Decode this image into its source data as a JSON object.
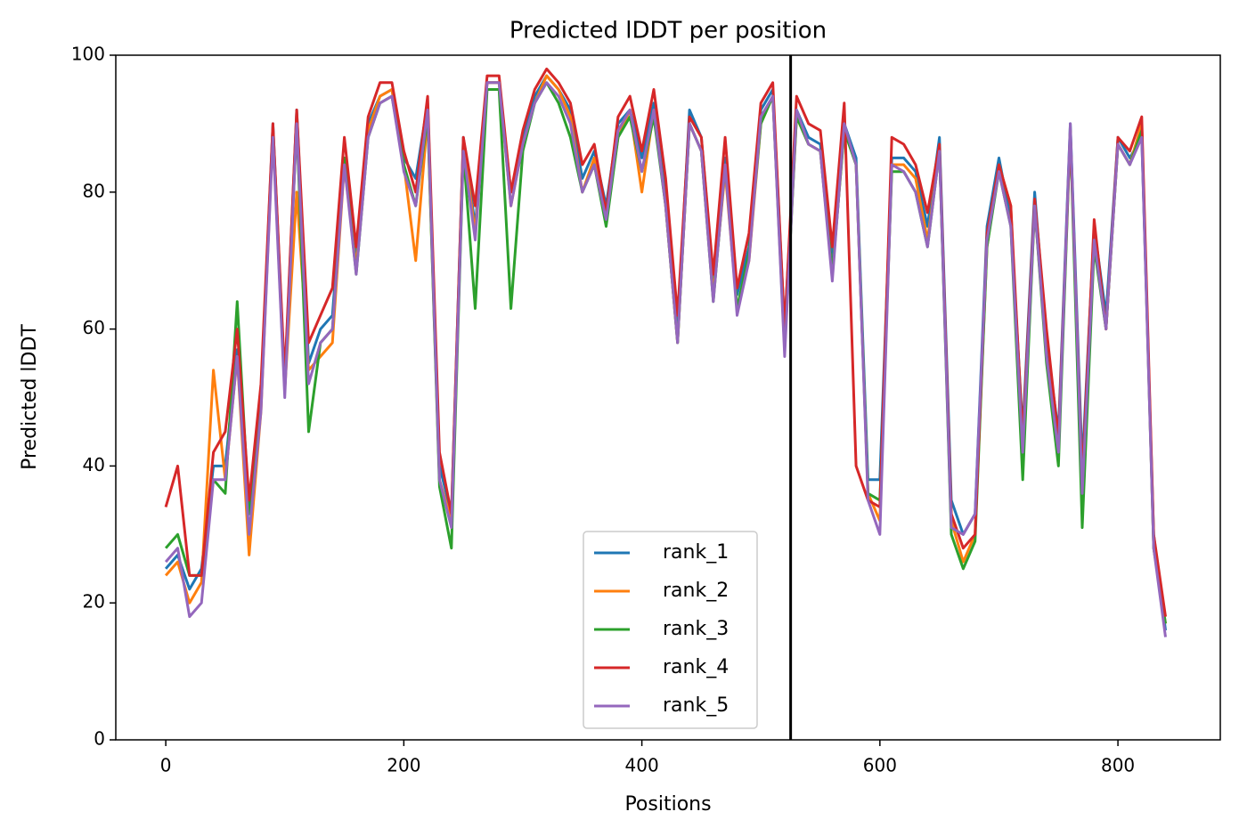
{
  "chart_data": {
    "type": "line",
    "title": "Predicted lDDT per position",
    "xlabel": "Positions",
    "ylabel": "Predicted lDDT",
    "xlim": [
      -42,
      886
    ],
    "ylim": [
      0,
      100
    ],
    "xticks": [
      0,
      200,
      400,
      600,
      800
    ],
    "yticks": [
      0,
      20,
      40,
      60,
      80,
      100
    ],
    "vlines": [
      525
    ],
    "legend": "lower center",
    "x": [
      0,
      10,
      20,
      30,
      40,
      50,
      60,
      70,
      80,
      90,
      100,
      110,
      120,
      130,
      140,
      150,
      160,
      170,
      180,
      190,
      200,
      210,
      220,
      230,
      240,
      250,
      260,
      270,
      280,
      290,
      300,
      310,
      320,
      330,
      340,
      350,
      360,
      370,
      380,
      390,
      400,
      410,
      420,
      430,
      440,
      450,
      460,
      470,
      480,
      490,
      500,
      510,
      520,
      530,
      540,
      550,
      560,
      570,
      580,
      590,
      600,
      610,
      620,
      630,
      640,
      650,
      660,
      670,
      680,
      690,
      700,
      710,
      720,
      730,
      740,
      750,
      760,
      770,
      780,
      790,
      800,
      810,
      820,
      830,
      840
    ],
    "series": [
      {
        "name": "rank_1",
        "color": "#1f77b4",
        "values": [
          25,
          27,
          22,
          25,
          40,
          40,
          57,
          33,
          50,
          90,
          52,
          92,
          55,
          60,
          62,
          85,
          70,
          90,
          94,
          95,
          85,
          82,
          93,
          40,
          33,
          88,
          75,
          96,
          96,
          80,
          88,
          94,
          97,
          95,
          92,
          82,
          86,
          78,
          90,
          92,
          85,
          93,
          80,
          60,
          92,
          88,
          67,
          85,
          65,
          72,
          92,
          95,
          60,
          92,
          88,
          87,
          70,
          90,
          85,
          38,
          38,
          85,
          85,
          83,
          75,
          88,
          35,
          30,
          33,
          75,
          85,
          76,
          45,
          80,
          58,
          45,
          90,
          40,
          75,
          62,
          88,
          85,
          88,
          30,
          16
        ]
      },
      {
        "name": "rank_2",
        "color": "#ff7f0e",
        "values": [
          24,
          26,
          20,
          23,
          54,
          38,
          56,
          27,
          48,
          89,
          51,
          80,
          54,
          56,
          58,
          84,
          69,
          89,
          94,
          95,
          84,
          70,
          91,
          38,
          32,
          87,
          74,
          96,
          96,
          78,
          87,
          93,
          97,
          95,
          91,
          80,
          85,
          76,
          88,
          92,
          80,
          92,
          78,
          58,
          90,
          86,
          65,
          83,
          63,
          70,
          90,
          94,
          58,
          91,
          87,
          86,
          68,
          89,
          84,
          36,
          32,
          84,
          84,
          82,
          73,
          86,
          32,
          26,
          30,
          72,
          84,
          78,
          40,
          78,
          56,
          42,
          89,
          36,
          73,
          60,
          87,
          84,
          90,
          28,
          17
        ]
      },
      {
        "name": "rank_3",
        "color": "#2ca02c",
        "values": [
          28,
          30,
          24,
          24,
          38,
          36,
          64,
          33,
          50,
          89,
          51,
          90,
          45,
          58,
          60,
          85,
          68,
          88,
          93,
          94,
          84,
          78,
          91,
          37,
          28,
          86,
          63,
          95,
          95,
          63,
          86,
          93,
          96,
          93,
          88,
          80,
          84,
          75,
          88,
          91,
          83,
          91,
          78,
          58,
          90,
          86,
          64,
          84,
          63,
          71,
          90,
          94,
          57,
          91,
          87,
          86,
          68,
          89,
          84,
          36,
          35,
          83,
          83,
          80,
          72,
          86,
          30,
          25,
          29,
          72,
          83,
          75,
          38,
          78,
          55,
          40,
          89,
          31,
          72,
          60,
          87,
          84,
          89,
          28,
          17
        ]
      },
      {
        "name": "rank_4",
        "color": "#d62728",
        "values": [
          34,
          40,
          24,
          24,
          42,
          45,
          60,
          35,
          52,
          90,
          53,
          92,
          58,
          62,
          66,
          88,
          72,
          91,
          96,
          96,
          86,
          80,
          94,
          42,
          33,
          88,
          78,
          97,
          97,
          80,
          89,
          95,
          98,
          96,
          93,
          84,
          87,
          77,
          91,
          94,
          86,
          95,
          82,
          62,
          91,
          88,
          68,
          88,
          66,
          74,
          93,
          96,
          60,
          94,
          90,
          89,
          72,
          93,
          40,
          35,
          34,
          88,
          87,
          84,
          77,
          87,
          33,
          28,
          30,
          74,
          84,
          78,
          44,
          79,
          60,
          44,
          89,
          38,
          76,
          60,
          88,
          86,
          91,
          30,
          18
        ]
      },
      {
        "name": "rank_5",
        "color": "#9467bd",
        "values": [
          26,
          28,
          18,
          20,
          38,
          38,
          56,
          30,
          48,
          88,
          50,
          90,
          52,
          58,
          60,
          84,
          68,
          88,
          93,
          94,
          83,
          78,
          92,
          38,
          31,
          86,
          73,
          96,
          96,
          78,
          87,
          93,
          96,
          94,
          90,
          80,
          84,
          76,
          89,
          92,
          83,
          92,
          78,
          58,
          90,
          86,
          64,
          84,
          62,
          70,
          91,
          94,
          56,
          92,
          87,
          86,
          67,
          90,
          84,
          35,
          30,
          84,
          83,
          80,
          72,
          86,
          31,
          30,
          33,
          73,
          83,
          75,
          42,
          78,
          56,
          42,
          90,
          36,
          73,
          60,
          87,
          84,
          88,
          28,
          15
        ]
      }
    ]
  }
}
